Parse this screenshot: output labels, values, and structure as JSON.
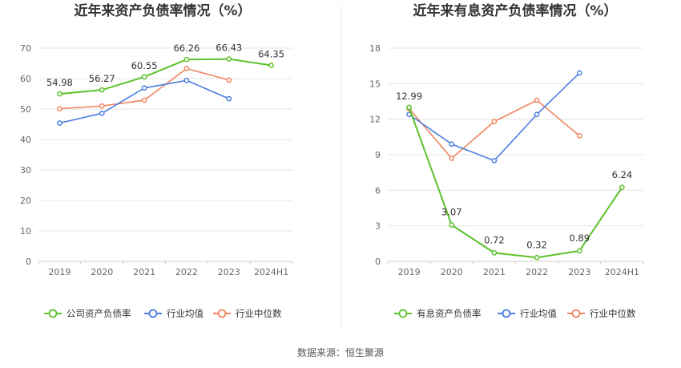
{
  "source_text": "数据来源：恒生聚源",
  "chart_data": [
    {
      "type": "line",
      "title": "近年来资产负债率情况（%）",
      "categories": [
        "2019",
        "2020",
        "2021",
        "2022",
        "2023",
        "2024H1"
      ],
      "ylim": [
        0,
        70
      ],
      "yticks": [
        0,
        10,
        20,
        30,
        40,
        50,
        60,
        70
      ],
      "grid": true,
      "legend_position": "bottom",
      "series": [
        {
          "name": "公司资产负债率",
          "color": "#5cc22c",
          "values": [
            54.98,
            56.27,
            60.55,
            66.26,
            66.43,
            64.35
          ],
          "labels": [
            "54.98",
            "56.27",
            "60.55",
            "66.26",
            "66.43",
            "64.35"
          ]
        },
        {
          "name": "行业均值",
          "color": "#4a7fe0",
          "values": [
            45.4,
            48.6,
            56.9,
            59.4,
            53.4,
            null
          ]
        },
        {
          "name": "行业中位数",
          "color": "#f08560",
          "values": [
            50.1,
            51.0,
            52.9,
            63.3,
            59.5,
            null
          ]
        }
      ]
    },
    {
      "type": "line",
      "title": "近年来有息资产负债率情况（%）",
      "categories": [
        "2019",
        "2020",
        "2021",
        "2022",
        "2023",
        "2024H1"
      ],
      "ylim": [
        0,
        18
      ],
      "yticks": [
        0,
        3,
        6,
        9,
        12,
        15,
        18
      ],
      "grid": true,
      "legend_position": "bottom",
      "series": [
        {
          "name": "有息资产负债率",
          "color": "#5cc22c",
          "values": [
            12.99,
            3.07,
            0.72,
            0.32,
            0.89,
            6.24
          ],
          "labels": [
            "12.99",
            "3.07",
            "0.72",
            "0.32",
            "0.89",
            "6.24"
          ]
        },
        {
          "name": "行业均值",
          "color": "#4a7fe0",
          "values": [
            12.4,
            9.9,
            8.5,
            12.4,
            15.9,
            null
          ]
        },
        {
          "name": "行业中位数",
          "color": "#f08560",
          "values": [
            12.9,
            8.7,
            11.8,
            13.6,
            10.6,
            null
          ]
        }
      ]
    }
  ]
}
